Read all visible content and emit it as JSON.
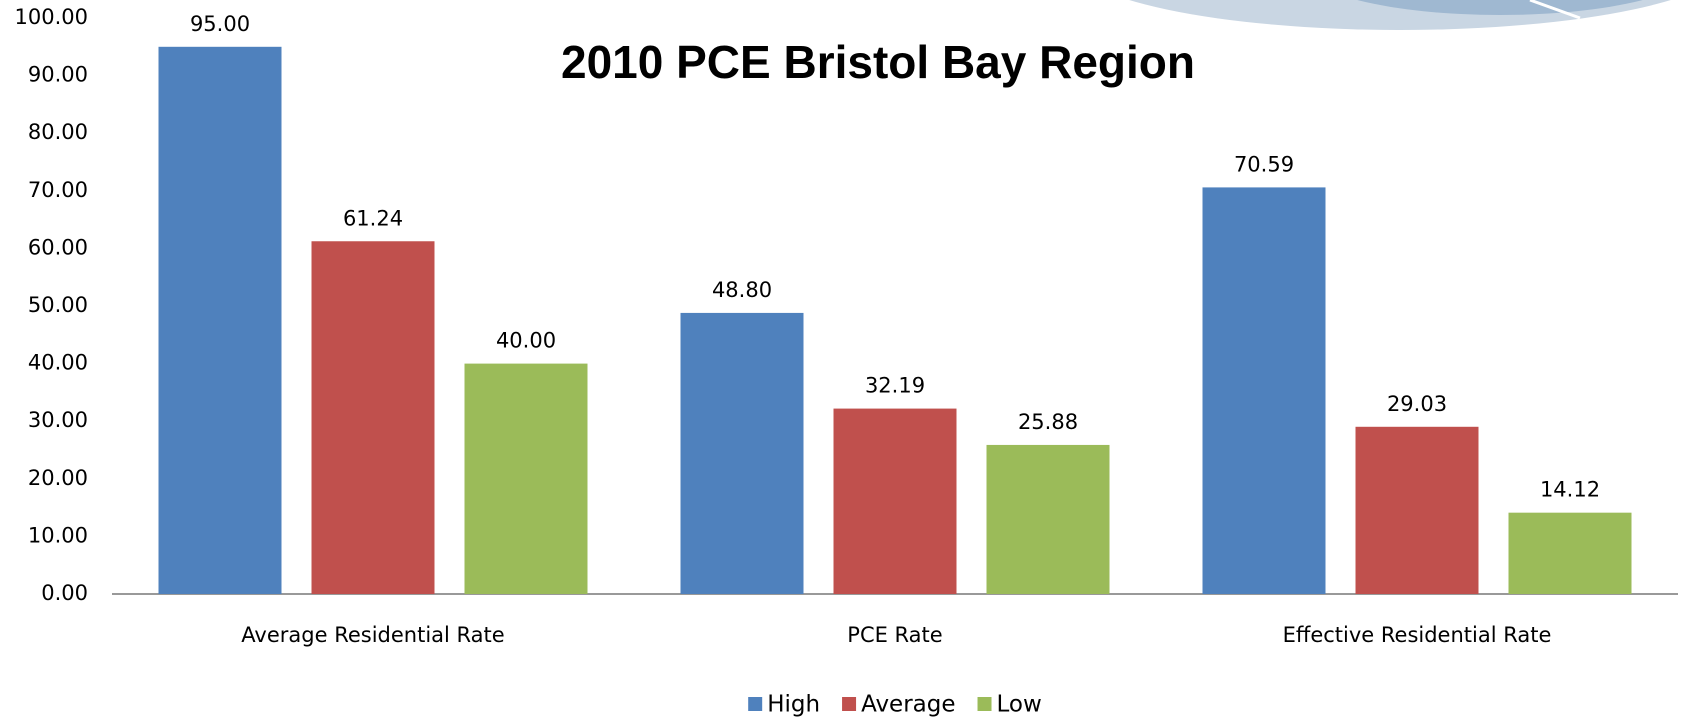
{
  "chart_data": {
    "type": "bar",
    "title": "2010 PCE Bristol Bay Region",
    "categories": [
      "Average Residential Rate",
      "PCE Rate",
      "Effective Residential Rate"
    ],
    "series": [
      {
        "name": "High",
        "color": "#4f81bd",
        "values": [
          95.0,
          48.8,
          70.59
        ],
        "value_labels": [
          "95.00",
          "48.80",
          "70.59"
        ]
      },
      {
        "name": "Average",
        "color": "#c0504d",
        "values": [
          61.24,
          32.19,
          29.03
        ],
        "value_labels": [
          "61.24",
          "32.19",
          "29.03"
        ]
      },
      {
        "name": "Low",
        "color": "#9bbb59",
        "values": [
          40.0,
          25.88,
          14.12
        ],
        "value_labels": [
          "40.00",
          "25.88",
          "14.12"
        ]
      }
    ],
    "ylim": [
      0,
      100
    ],
    "yticks": [
      {
        "value": 0,
        "label": "0.00"
      },
      {
        "value": 10,
        "label": "10.00"
      },
      {
        "value": 20,
        "label": "20.00"
      },
      {
        "value": 30,
        "label": "30.00"
      },
      {
        "value": 40,
        "label": "40.00"
      },
      {
        "value": 50,
        "label": "50.00"
      },
      {
        "value": 60,
        "label": "60.00"
      },
      {
        "value": 70,
        "label": "70.00"
      },
      {
        "value": 80,
        "label": "80.00"
      },
      {
        "value": 90,
        "label": "90.00"
      },
      {
        "value": 100,
        "label": "100.00"
      }
    ],
    "grid": false,
    "legend": "bottom"
  }
}
